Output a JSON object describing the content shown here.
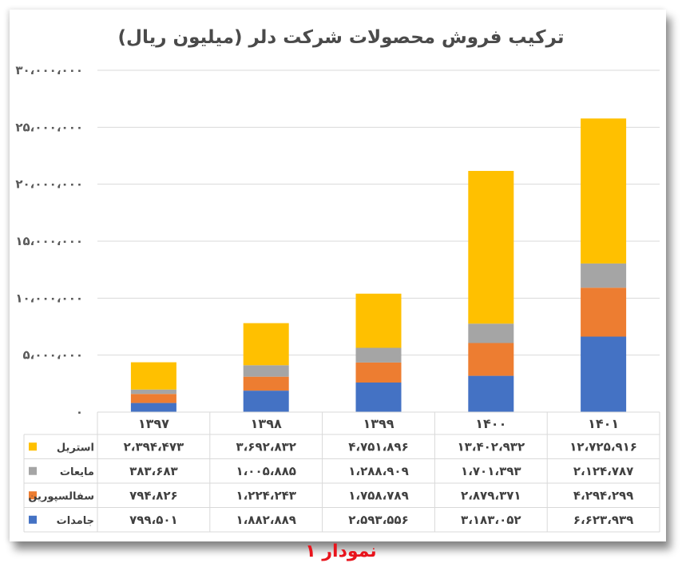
{
  "chart_data": {
    "type": "bar",
    "stacked": true,
    "title": "ترکیب فروش محصولات شرکت دلر (میلیون ریال)",
    "categories": [
      "۱۳۹۷",
      "۱۳۹۸",
      "۱۳۹۹",
      "۱۴۰۰",
      "۱۴۰۱"
    ],
    "ylim": [
      0,
      30000000
    ],
    "y_ticks": [
      "۰",
      "۵،۰۰۰،۰۰۰",
      "۱۰،۰۰۰،۰۰۰",
      "۱۵،۰۰۰،۰۰۰",
      "۲۰،۰۰۰،۰۰۰",
      "۲۵،۰۰۰،۰۰۰",
      "۳۰،۰۰۰،۰۰۰"
    ],
    "grid": true,
    "legend_placement": "data-table-right",
    "series": [
      {
        "name": "جامدات",
        "color": "#4472c4",
        "values": [
          799501,
          1882889,
          2593556,
          3183052,
          6623939
        ],
        "labels": [
          "۷۹۹،۵۰۱",
          "۱،۸۸۲،۸۸۹",
          "۲،۵۹۳،۵۵۶",
          "۳،۱۸۳،۰۵۲",
          "۶،۶۲۳،۹۳۹"
        ]
      },
      {
        "name": "سفالسپورین",
        "color": "#ed7d31",
        "values": [
          794826,
          1224243,
          1758789,
          2879371,
          4294299
        ],
        "labels": [
          "۷۹۴،۸۲۶",
          "۱،۲۲۴،۲۴۳",
          "۱،۷۵۸،۷۸۹",
          "۲،۸۷۹،۳۷۱",
          "۴،۲۹۴،۲۹۹"
        ]
      },
      {
        "name": "مایعات",
        "color": "#a5a5a5",
        "values": [
          383683,
          1005885,
          1288909,
          1701393,
          2124787
        ],
        "labels": [
          "۳۸۳،۶۸۳",
          "۱،۰۰۵،۸۸۵",
          "۱،۲۸۸،۹۰۹",
          "۱،۷۰۱،۳۹۳",
          "۲،۱۲۴،۷۸۷"
        ]
      },
      {
        "name": "استریل",
        "color": "#ffc000",
        "values": [
          2394473,
          3692832,
          4751896,
          13402932,
          12725916
        ],
        "labels": [
          "۲،۳۹۴،۴۷۳",
          "۳،۶۹۲،۸۳۲",
          "۴،۷۵۱،۸۹۶",
          "۱۳،۴۰۲،۹۳۲",
          "۱۲،۷۲۵،۹۱۶"
        ]
      }
    ]
  },
  "caption": "نمودار ۱"
}
